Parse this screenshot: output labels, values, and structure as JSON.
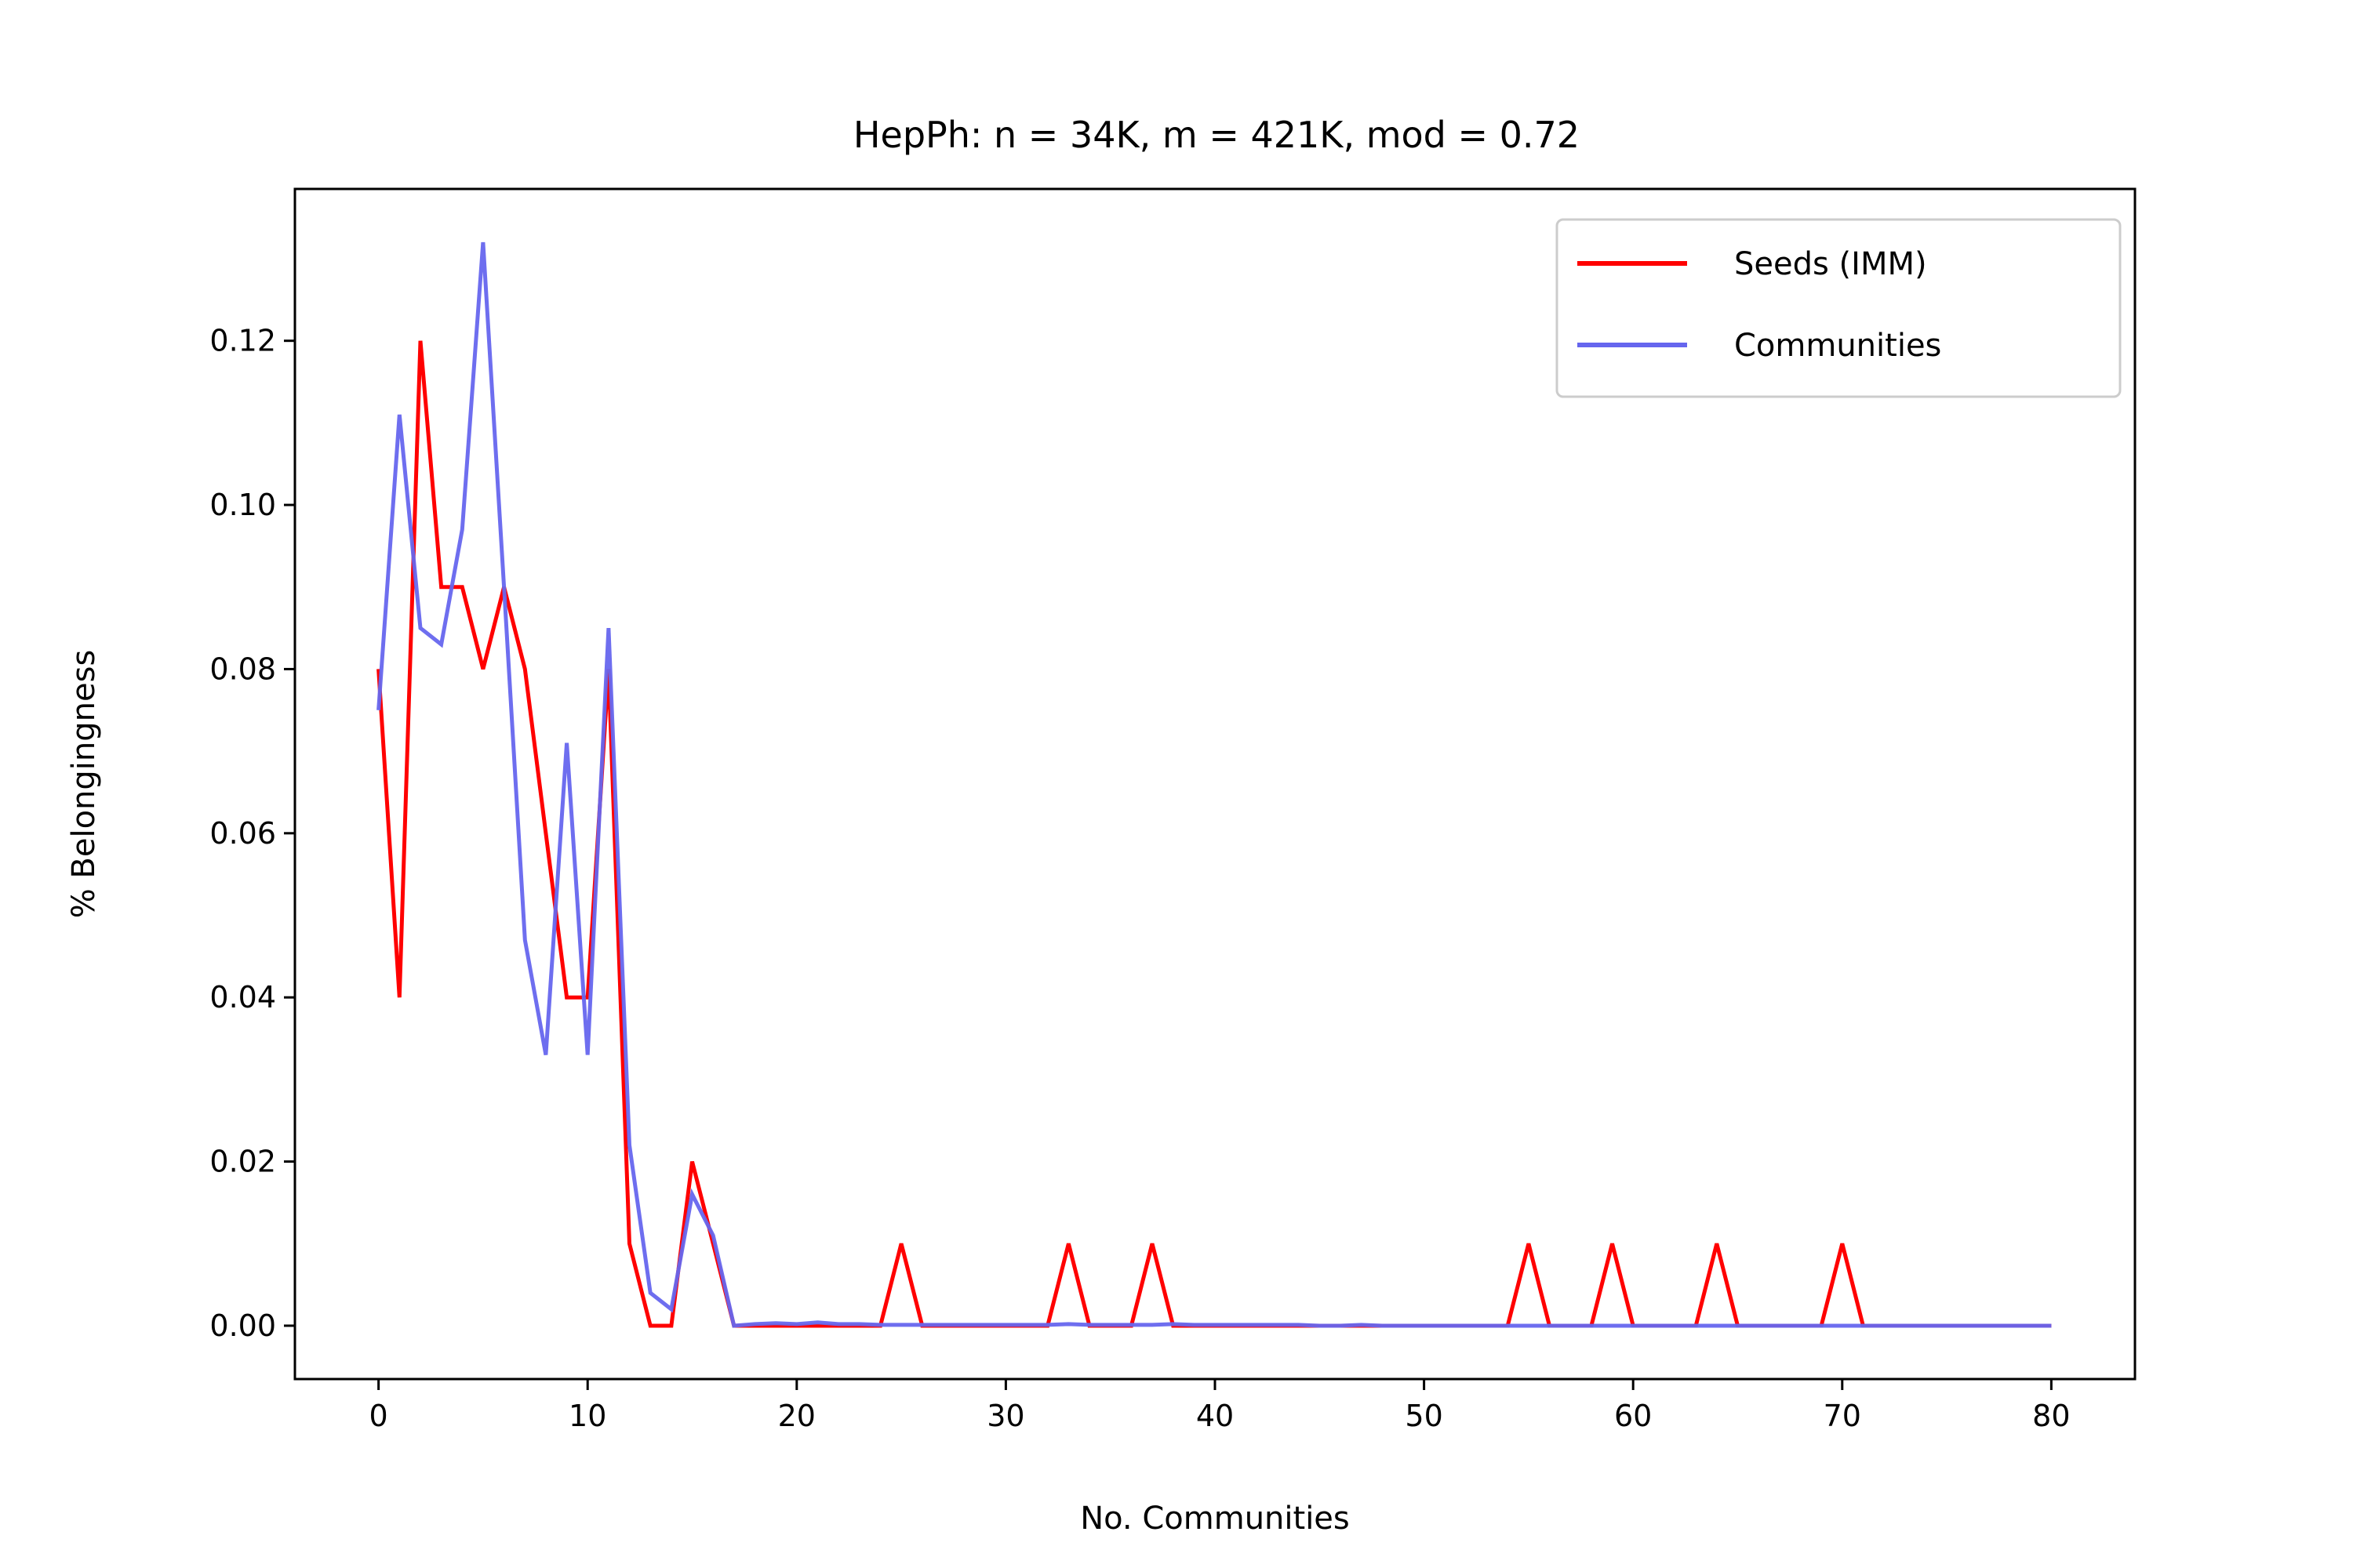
{
  "chart_data": {
    "type": "line",
    "title": "HepPh: n = 34K, m = 421K, mod = 0.72",
    "xlabel": "No. Communities",
    "ylabel": "% Belongingness",
    "xlim": [
      -4,
      84
    ],
    "ylim": [
      -0.0065,
      0.1385
    ],
    "xticks": [
      0,
      10,
      20,
      30,
      40,
      50,
      60,
      70,
      80
    ],
    "yticks": [
      0.0,
      0.02,
      0.04,
      0.06,
      0.08,
      0.1,
      0.12
    ],
    "ytick_labels": [
      "0.00",
      "0.02",
      "0.04",
      "0.06",
      "0.08",
      "0.10",
      "0.12"
    ],
    "grid": false,
    "legend_position": "top-right",
    "series": [
      {
        "name": "Seeds (IMM)",
        "color": "#ff0000",
        "x": [
          0,
          1,
          2,
          3,
          4,
          5,
          6,
          7,
          8,
          9,
          10,
          11,
          12,
          13,
          14,
          15,
          16,
          17,
          18,
          19,
          20,
          21,
          22,
          23,
          24,
          25,
          26,
          27,
          28,
          29,
          30,
          31,
          32,
          33,
          34,
          35,
          36,
          37,
          38,
          39,
          40,
          41,
          42,
          43,
          44,
          45,
          46,
          47,
          48,
          49,
          50,
          51,
          52,
          53,
          54,
          55,
          56,
          57,
          58,
          59,
          60,
          61,
          62,
          63,
          64,
          65,
          66,
          67,
          68,
          69,
          70,
          71,
          72,
          73,
          74,
          75,
          76,
          77,
          78,
          79,
          80
        ],
        "y": [
          0.08,
          0.04,
          0.12,
          0.09,
          0.09,
          0.08,
          0.09,
          0.08,
          0.06,
          0.04,
          0.04,
          0.08,
          0.01,
          0.0,
          0.0,
          0.02,
          0.01,
          0.0,
          0.0,
          0.0,
          0.0,
          0.0,
          0.0,
          0.0,
          0.0,
          0.01,
          0.0,
          0.0,
          0.0,
          0.0,
          0.0,
          0.0,
          0.0,
          0.01,
          0.0,
          0.0,
          0.0,
          0.01,
          0.0,
          0.0,
          0.0,
          0.0,
          0.0,
          0.0,
          0.0,
          0.0,
          0.0,
          0.0,
          0.0,
          0.0,
          0.0,
          0.0,
          0.0,
          0.0,
          0.0,
          0.01,
          0.0,
          0.0,
          0.0,
          0.01,
          0.0,
          0.0,
          0.0,
          0.0,
          0.01,
          0.0,
          0.0,
          0.0,
          0.0,
          0.0,
          0.01,
          0.0,
          0.0,
          0.0,
          0.0,
          0.0,
          0.0,
          0.0,
          0.0,
          0.0,
          0.0
        ]
      },
      {
        "name": "Communities",
        "color": "#6666ee",
        "x": [
          0,
          1,
          2,
          3,
          4,
          5,
          6,
          7,
          8,
          9,
          10,
          11,
          12,
          13,
          14,
          15,
          16,
          17,
          18,
          19,
          20,
          21,
          22,
          23,
          24,
          25,
          26,
          27,
          28,
          29,
          30,
          31,
          32,
          33,
          34,
          35,
          36,
          37,
          38,
          39,
          40,
          41,
          42,
          43,
          44,
          45,
          46,
          47,
          48,
          49,
          50,
          51,
          52,
          53,
          54,
          55,
          56,
          57,
          58,
          59,
          60,
          61,
          62,
          63,
          64,
          65,
          66,
          67,
          68,
          69,
          70,
          71,
          72,
          73,
          74,
          75,
          76,
          77,
          78,
          79,
          80
        ],
        "y": [
          0.075,
          0.111,
          0.085,
          0.083,
          0.097,
          0.132,
          0.09,
          0.047,
          0.033,
          0.071,
          0.033,
          0.085,
          0.022,
          0.004,
          0.002,
          0.016,
          0.011,
          0.0,
          0.0002,
          0.0003,
          0.0002,
          0.0004,
          0.0002,
          0.0002,
          0.0001,
          0.0001,
          0.0001,
          0.0001,
          0.0001,
          0.0001,
          0.0001,
          0.0001,
          0.0001,
          0.0002,
          0.0001,
          0.0001,
          0.0001,
          0.0001,
          0.0002,
          0.0001,
          0.0001,
          0.0001,
          0.0001,
          0.0001,
          0.0001,
          0.0,
          0.0,
          0.0001,
          0.0,
          0.0,
          0.0,
          0.0,
          0.0,
          0.0,
          0.0,
          0.0,
          0.0,
          0.0,
          0.0,
          0.0,
          0.0,
          0.0,
          0.0,
          0.0,
          0.0,
          0.0,
          0.0,
          0.0,
          0.0,
          0.0,
          0.0,
          0.0,
          0.0,
          0.0,
          0.0,
          0.0,
          0.0,
          0.0,
          0.0,
          0.0,
          0.0
        ]
      }
    ]
  }
}
